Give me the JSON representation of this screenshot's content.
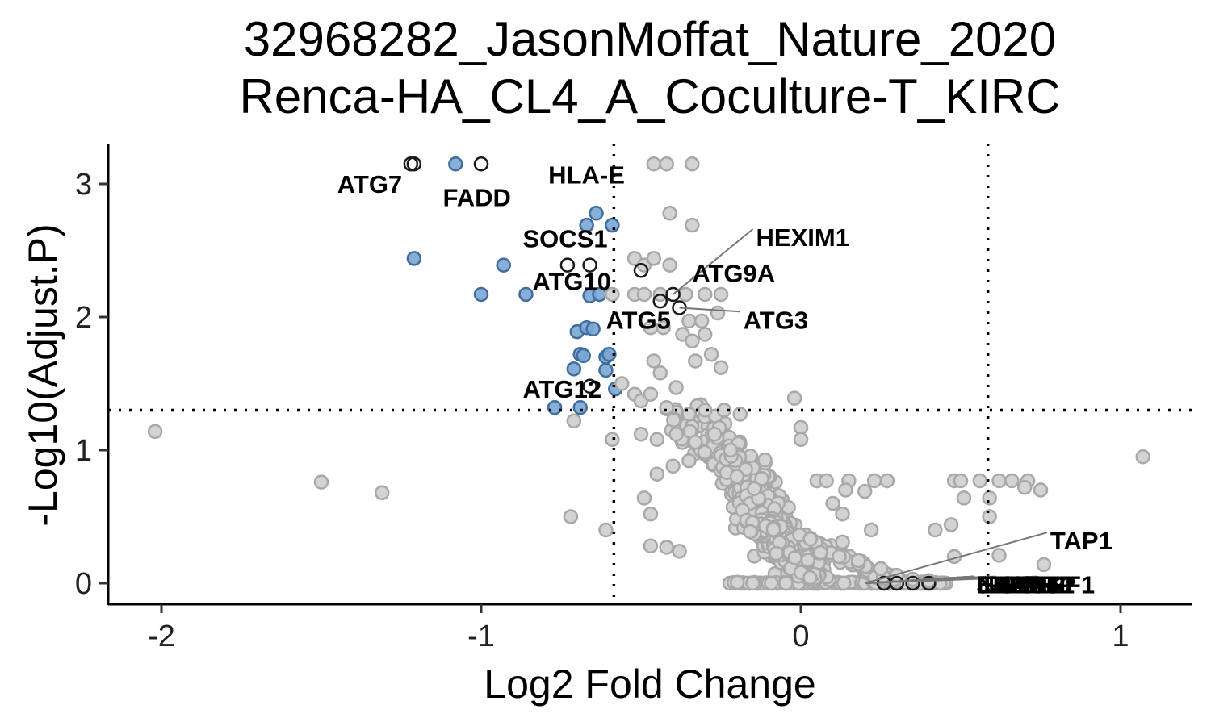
{
  "chart_data": {
    "type": "scatter",
    "title": [
      "32968282_JasonMoffat_Nature_2020",
      "Renca-HA_CL4_A_Coculture-T_KIRC"
    ],
    "xlabel": "Log2 Fold Change",
    "ylabel": "-Log10(Adjust.P)",
    "xlim": [
      -2.2,
      1.22
    ],
    "ylim": [
      -0.15,
      3.3
    ],
    "x_ticks": [
      -2,
      -1,
      0,
      1
    ],
    "x_tick_labels": [
      "-2",
      "-1",
      "0",
      "1"
    ],
    "y_ticks": [
      0,
      1,
      2,
      3
    ],
    "y_tick_labels": [
      "0",
      "1",
      "2",
      "3"
    ],
    "thresholds": {
      "x": [
        -0.585,
        0.585
      ],
      "y": 1.3
    },
    "grid": false,
    "colors": {
      "nonsig_fill": "#d3d3d3",
      "nonsig_stroke": "#a8a8a8",
      "down_fill": "#7aa6d4",
      "down_stroke": "#3f6e9f",
      "highlight_stroke": "#1a1a1a",
      "leader": "#777777"
    },
    "series": [
      {
        "group": "down",
        "points": [
          [
            -1.21,
            2.44
          ],
          [
            -1.0,
            2.17
          ],
          [
            -0.93,
            2.39
          ],
          [
            -0.86,
            2.17
          ],
          [
            -0.64,
            2.78
          ],
          [
            -0.67,
            2.69
          ],
          [
            -0.59,
            2.69
          ],
          [
            -0.66,
            2.16
          ],
          [
            -0.63,
            2.17
          ],
          [
            -0.7,
            1.89
          ],
          [
            -0.67,
            1.92
          ],
          [
            -0.65,
            1.91
          ],
          [
            -0.69,
            1.72
          ],
          [
            -0.68,
            1.71
          ],
          [
            -0.61,
            1.7
          ],
          [
            -0.6,
            1.72
          ],
          [
            -0.71,
            1.61
          ],
          [
            -0.61,
            1.6
          ],
          [
            -0.58,
            1.46
          ],
          [
            -0.77,
            1.32
          ],
          [
            -0.69,
            1.32
          ],
          [
            -1.08,
            3.15
          ]
        ]
      },
      {
        "group": "nonsig",
        "points": [
          [
            -2.02,
            1.14
          ],
          [
            -1.5,
            0.76
          ],
          [
            -1.31,
            0.68
          ],
          [
            -0.72,
            0.5
          ],
          [
            -0.61,
            0.4
          ],
          [
            -0.71,
            1.22
          ],
          [
            -0.59,
            1.08
          ],
          [
            -0.56,
            1.5
          ],
          [
            -0.52,
            1.42
          ],
          [
            -0.46,
            3.15
          ],
          [
            -0.42,
            3.15
          ],
          [
            -0.34,
            3.15
          ],
          [
            -0.41,
            2.78
          ],
          [
            -0.34,
            2.69
          ],
          [
            -0.52,
            2.44
          ],
          [
            -0.49,
            2.39
          ],
          [
            -0.46,
            2.44
          ],
          [
            -0.41,
            2.39
          ],
          [
            -0.59,
            2.17
          ],
          [
            -0.52,
            2.17
          ],
          [
            -0.49,
            2.17
          ],
          [
            -0.44,
            2.17
          ],
          [
            -0.36,
            2.17
          ],
          [
            -0.3,
            2.17
          ],
          [
            -0.25,
            2.17
          ],
          [
            -0.47,
            1.92
          ],
          [
            -0.43,
            1.92
          ],
          [
            -0.35,
            1.97
          ],
          [
            -0.31,
            1.97
          ],
          [
            -0.26,
            2.03
          ],
          [
            -0.37,
            1.87
          ],
          [
            -0.34,
            1.82
          ],
          [
            -0.3,
            1.87
          ],
          [
            -0.28,
            1.72
          ],
          [
            -0.25,
            1.62
          ],
          [
            -0.33,
            1.67
          ],
          [
            -0.46,
            1.67
          ],
          [
            -0.44,
            1.58
          ],
          [
            -0.39,
            1.47
          ],
          [
            -0.5,
            1.37
          ],
          [
            -0.47,
            1.42
          ],
          [
            -0.42,
            1.32
          ],
          [
            -0.35,
            1.27
          ],
          [
            -0.3,
            1.3
          ],
          [
            -0.24,
            1.3
          ],
          [
            -0.19,
            1.27
          ],
          [
            -0.02,
            1.39
          ],
          [
            -0.5,
            1.12
          ],
          [
            -0.45,
            1.08
          ],
          [
            -0.39,
            1.12
          ],
          [
            -0.33,
            1.06
          ],
          [
            -0.27,
            1.12
          ],
          [
            -0.22,
            1.0
          ],
          [
            0.0,
            1.17
          ],
          [
            0.0,
            1.08
          ],
          [
            -0.45,
            0.82
          ],
          [
            -0.4,
            0.88
          ],
          [
            -0.35,
            0.92
          ],
          [
            -0.49,
            0.64
          ],
          [
            -0.47,
            0.52
          ],
          [
            -0.47,
            0.28
          ],
          [
            -0.42,
            0.27
          ],
          [
            -0.38,
            0.24
          ],
          [
            0.05,
            0.77
          ],
          [
            0.08,
            0.77
          ],
          [
            0.15,
            0.77
          ],
          [
            0.23,
            0.77
          ],
          [
            0.27,
            0.77
          ],
          [
            0.14,
            0.7
          ],
          [
            0.2,
            0.69
          ],
          [
            0.1,
            0.6
          ],
          [
            0.13,
            0.52
          ],
          [
            0.22,
            0.4
          ],
          [
            0.13,
            0.31
          ],
          [
            0.48,
            0.77
          ],
          [
            0.5,
            0.77
          ],
          [
            0.56,
            0.77
          ],
          [
            0.62,
            0.77
          ],
          [
            0.66,
            0.77
          ],
          [
            0.71,
            0.77
          ],
          [
            0.7,
            0.72
          ],
          [
            0.75,
            0.7
          ],
          [
            0.51,
            0.64
          ],
          [
            0.59,
            0.64
          ],
          [
            0.59,
            0.5
          ],
          [
            0.42,
            0.4
          ],
          [
            0.47,
            0.44
          ],
          [
            0.62,
            0.21
          ],
          [
            0.76,
            0.14
          ],
          [
            0.48,
            0.2
          ],
          [
            1.07,
            0.95
          ],
          [
            0.12,
            0.2
          ],
          [
            0.18,
            0.17
          ],
          [
            0.25,
            0.11
          ],
          [
            0.3,
            0.06
          ],
          [
            0.35,
            0.03
          ],
          [
            0.4,
            0.02
          ]
        ]
      },
      {
        "group": "highlight",
        "points": [
          [
            -1.22,
            3.15
          ],
          [
            -1.21,
            3.15
          ],
          [
            -1.0,
            3.15
          ],
          [
            -0.73,
            2.39
          ],
          [
            -0.66,
            2.39
          ],
          [
            -0.5,
            2.35
          ],
          [
            -0.4,
            2.17
          ],
          [
            -0.44,
            2.12
          ],
          [
            -0.38,
            2.07
          ],
          [
            -0.66,
            1.48
          ],
          [
            0.26,
            0.0
          ],
          [
            0.3,
            0.0
          ],
          [
            0.35,
            0.0
          ],
          [
            0.4,
            0.0
          ]
        ]
      }
    ],
    "cloud": [
      {
        "from": [
          -0.35,
          1.28
        ],
        "to": [
          -0.1,
          0.55
        ],
        "spread": 0.14,
        "n": 160
      },
      {
        "from": [
          -0.22,
          1.0
        ],
        "to": [
          0.0,
          0.02
        ],
        "spread": 0.12,
        "n": 260
      },
      {
        "from": [
          -0.22,
          0.0
        ],
        "to": [
          0.45,
          0.0
        ],
        "spread": 0.02,
        "n": 170
      },
      {
        "from": [
          -0.12,
          0.45
        ],
        "to": [
          0.05,
          0.05
        ],
        "spread": 0.09,
        "n": 200
      },
      {
        "from": [
          0.0,
          0.35
        ],
        "to": [
          0.28,
          0.03
        ],
        "spread": 0.05,
        "n": 60
      }
    ],
    "annotations": [
      {
        "text": "ATG7",
        "x": -1.45,
        "y": 3.0
      },
      {
        "text": "FADD",
        "x": -1.12,
        "y": 2.9
      },
      {
        "text": "HLA-E",
        "x": -0.79,
        "y": 3.07
      },
      {
        "text": "SOCS1",
        "x": -0.87,
        "y": 2.59
      },
      {
        "text": "ATG10",
        "x": -0.84,
        "y": 2.27
      },
      {
        "text": "ATG5",
        "x": -0.61,
        "y": 1.98
      },
      {
        "text": "ATG12",
        "x": -0.87,
        "y": 1.46
      },
      {
        "text": "HEXIM1",
        "x": -0.14,
        "y": 2.6,
        "lead_to": [
          -0.4,
          2.17
        ]
      },
      {
        "text": "ATG9A",
        "x": -0.34,
        "y": 2.33
      },
      {
        "text": "ATG3",
        "x": -0.18,
        "y": 1.98,
        "lead_to": [
          -0.38,
          2.07
        ]
      },
      {
        "text": "TAP1",
        "x": 0.78,
        "y": 0.32,
        "lead_to": [
          0.2,
          0.0
        ]
      },
      {
        "text": "IFNGR1",
        "x": 0.55,
        "y": -0.01,
        "lead_to": [
          0.2,
          0.0
        ]
      },
      {
        "text": "ERAP1",
        "x": 0.55,
        "y": -0.01,
        "lead_to": [
          0.2,
          0.0
        ]
      },
      {
        "text": "NLRC5",
        "x": 0.55,
        "y": -0.01,
        "lead_to": [
          0.2,
          0.0
        ]
      },
      {
        "text": "JAK1",
        "x": 0.55,
        "y": -0.01,
        "lead_to": [
          0.2,
          0.0
        ]
      },
      {
        "text": "STAT1",
        "x": 0.62,
        "y": -0.01,
        "lead_to": [
          0.2,
          0.0
        ]
      },
      {
        "text": "B2M",
        "x": 0.6,
        "y": -0.01,
        "lead_to": [
          0.2,
          0.0
        ]
      },
      {
        "text": "IRF1",
        "x": 0.75,
        "y": -0.01,
        "lead_to": [
          0.2,
          0.0
        ]
      },
      {
        "text": "TAPBP",
        "x": 0.6,
        "y": -0.01,
        "lead_to": [
          0.2,
          0.0
        ]
      }
    ]
  }
}
